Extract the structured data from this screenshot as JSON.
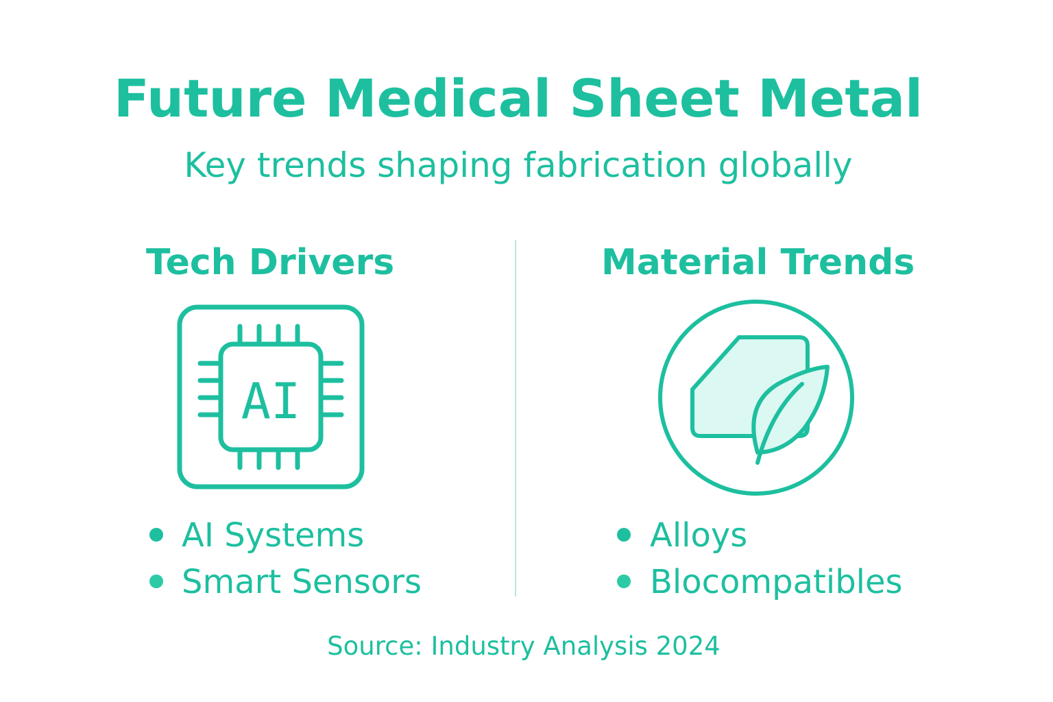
{
  "header": {
    "title": "Future Medical Sheet Metal",
    "subtitle": "Key trends shaping fabrication globally"
  },
  "columns": [
    {
      "heading": "Tech Drivers",
      "icon_label": "AI",
      "items": [
        "AI Systems",
        "Smart Sensors"
      ]
    },
    {
      "heading": "Material Trends",
      "items": [
        "Alloys",
        "Blocompatibles"
      ]
    }
  ],
  "footer": {
    "source": "Source: Industry Analysis 2024"
  }
}
